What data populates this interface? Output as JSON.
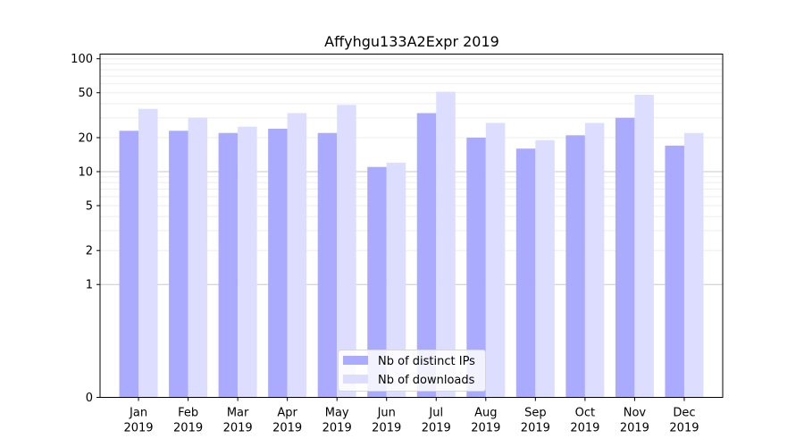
{
  "chart_data": {
    "type": "bar",
    "title": "Affyhgu133A2Expr 2019",
    "xlabel": "",
    "ylabel": "",
    "categories": [
      {
        "month": "Jan",
        "year": "2019"
      },
      {
        "month": "Feb",
        "year": "2019"
      },
      {
        "month": "Mar",
        "year": "2019"
      },
      {
        "month": "Apr",
        "year": "2019"
      },
      {
        "month": "May",
        "year": "2019"
      },
      {
        "month": "Jun",
        "year": "2019"
      },
      {
        "month": "Jul",
        "year": "2019"
      },
      {
        "month": "Aug",
        "year": "2019"
      },
      {
        "month": "Sep",
        "year": "2019"
      },
      {
        "month": "Oct",
        "year": "2019"
      },
      {
        "month": "Nov",
        "year": "2019"
      },
      {
        "month": "Dec",
        "year": "2019"
      }
    ],
    "series": [
      {
        "name": "Nb of distinct IPs",
        "color": "#aaaaff",
        "values": [
          23,
          23,
          22,
          24,
          22,
          11,
          33,
          20,
          16,
          21,
          30,
          17
        ]
      },
      {
        "name": "Nb of downloads",
        "color": "#ddddff",
        "values": [
          36,
          30,
          25,
          33,
          39,
          12,
          51,
          27,
          19,
          27,
          48,
          22
        ]
      }
    ],
    "y_scale": "symlog",
    "ylim": [
      0,
      110
    ],
    "y_ticks": [
      {
        "value": 0,
        "label": "0"
      },
      {
        "value": 1,
        "label": "1"
      },
      {
        "value": 2,
        "label": "2"
      },
      {
        "value": 5,
        "label": "5"
      },
      {
        "value": 10,
        "label": "10"
      },
      {
        "value": 20,
        "label": "20"
      },
      {
        "value": 50,
        "label": "50"
      },
      {
        "value": 100,
        "label": "100"
      }
    ],
    "grid": true,
    "legend_position": "bottom-center"
  }
}
